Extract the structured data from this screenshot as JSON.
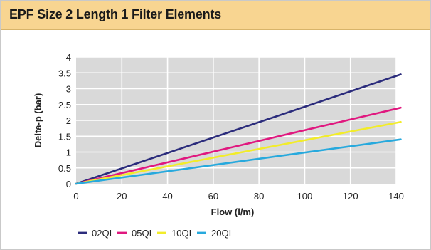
{
  "header": {
    "title": "EPF Size 2 Length 1 Filter Elements"
  },
  "chart_data": {
    "type": "line",
    "xlabel": "Flow (l/m)",
    "ylabel": "Delta-p (bar)",
    "xlim": [
      0,
      140
    ],
    "ylim": [
      0,
      4
    ],
    "xticks": [
      0,
      20,
      40,
      60,
      80,
      100,
      120,
      140
    ],
    "yticks": [
      0,
      0.5,
      1,
      1.5,
      2,
      2.5,
      3,
      3.5,
      4
    ],
    "xtick_labels": [
      "0",
      "20",
      "40",
      "60",
      "80",
      "100",
      "120",
      "140"
    ],
    "ytick_labels": [
      "0",
      "0.5",
      "1",
      "1.5",
      "2",
      "2.5",
      "3",
      "3.5",
      "4"
    ],
    "grid": true,
    "legend_position": "bottom",
    "series": [
      {
        "name": "02QI",
        "color": "#2b2c7c",
        "x": [
          0,
          142
        ],
        "y": [
          0,
          3.45
        ]
      },
      {
        "name": "05QI",
        "color": "#e0187f",
        "x": [
          0,
          142
        ],
        "y": [
          0,
          2.4
        ]
      },
      {
        "name": "10QI",
        "color": "#f2ec2a",
        "x": [
          0,
          142
        ],
        "y": [
          0,
          1.95
        ]
      },
      {
        "name": "20QI",
        "color": "#27a9dd",
        "x": [
          0,
          142
        ],
        "y": [
          0,
          1.4
        ]
      }
    ]
  }
}
